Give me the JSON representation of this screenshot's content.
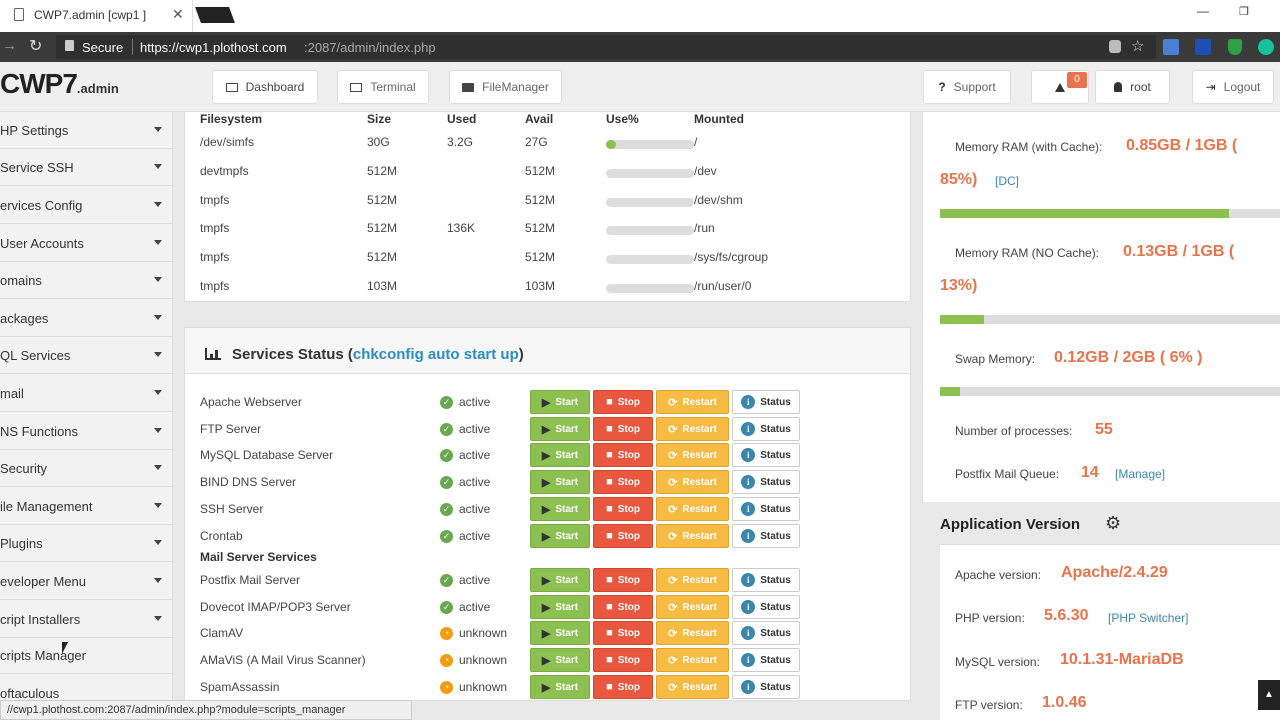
{
  "browser": {
    "tab_title": "CWP7.admin [cwp1 ]",
    "secure_label": "Secure",
    "url_host": "https://cwp1.plothost.com",
    "url_path": ":2087/admin/index.php"
  },
  "header": {
    "logo_main": "CWP7",
    "logo_sub": ".admin",
    "nav": [
      "Dashboard",
      "Terminal",
      "FileManager"
    ],
    "support": "Support",
    "notifications_count": "0",
    "user": "root",
    "logout": "Logout"
  },
  "sidebar": {
    "items": [
      "HP Settings",
      "Service SSH",
      "ervices Config",
      "User Accounts",
      "omains",
      "ackages",
      "QL Services",
      "mail",
      "NS Functions",
      "Security",
      "ile Management",
      "Plugins",
      "eveloper Menu",
      "cript Installers",
      "cripts Manager",
      "oftaculous"
    ]
  },
  "filesystem": {
    "headers": [
      "Filesystem",
      "Size",
      "Used",
      "Avail",
      "Use%",
      "Mounted"
    ],
    "rows": [
      {
        "fs": "/dev/simfs",
        "size": "30G",
        "used": "3.2G",
        "avail": "27G",
        "use_frac": 0.11,
        "mount": "/"
      },
      {
        "fs": "devtmpfs",
        "size": "512M",
        "used": "",
        "avail": "512M",
        "use_frac": 0,
        "mount": "/dev"
      },
      {
        "fs": "tmpfs",
        "size": "512M",
        "used": "",
        "avail": "512M",
        "use_frac": 0,
        "mount": "/dev/shm"
      },
      {
        "fs": "tmpfs",
        "size": "512M",
        "used": "136K",
        "avail": "512M",
        "use_frac": 0,
        "mount": "/run"
      },
      {
        "fs": "tmpfs",
        "size": "512M",
        "used": "",
        "avail": "512M",
        "use_frac": 0,
        "mount": "/sys/fs/cgroup"
      },
      {
        "fs": "tmpfs",
        "size": "103M",
        "used": "",
        "avail": "103M",
        "use_frac": 0,
        "mount": "/run/user/0"
      }
    ]
  },
  "services": {
    "title": "Services Status",
    "title_link": "chkconfig auto start up",
    "buttons": {
      "start": "Start",
      "stop": "Stop",
      "restart": "Restart",
      "status": "Status"
    },
    "mail_section": "Mail Server Services",
    "list": [
      {
        "name": "Apache Webserver",
        "state": "active"
      },
      {
        "name": "FTP Server",
        "state": "active"
      },
      {
        "name": "MySQL Database Server",
        "state": "active"
      },
      {
        "name": "BIND DNS Server",
        "state": "active"
      },
      {
        "name": "SSH Server",
        "state": "active"
      },
      {
        "name": "Crontab",
        "state": "active"
      }
    ],
    "mail_list": [
      {
        "name": "Postfix Mail Server",
        "state": "active"
      },
      {
        "name": "Dovecot IMAP/POP3 Server",
        "state": "active"
      },
      {
        "name": "ClamAV",
        "state": "unknown"
      },
      {
        "name": "AMaViS (A Mail Virus Scanner)",
        "state": "unknown"
      },
      {
        "name": "SpamAssassin",
        "state": "unknown"
      }
    ]
  },
  "stats": {
    "mem_cache_label": "Memory RAM (with Cache):",
    "mem_cache_value": "0.85GB / 1GB (",
    "mem_cache_pct": "85%)",
    "mem_cache_link": "[DC]",
    "mem_cache_frac": 0.85,
    "mem_nocache_label": "Memory RAM (NO Cache):",
    "mem_nocache_value": "0.13GB / 1GB (",
    "mem_nocache_pct": "13%)",
    "mem_nocache_frac": 0.13,
    "swap_label": "Swap Memory:",
    "swap_value": "0.12GB / 2GB ( 6% )",
    "swap_frac": 0.06,
    "proc_label": "Number of processes:",
    "proc_value": "55",
    "queue_label": "Postfix Mail Queue:",
    "queue_value": "14",
    "queue_link": "[Manage]"
  },
  "appversion": {
    "title": "Application Version",
    "apache_label": "Apache version:",
    "apache_value": "Apache/2.4.29",
    "php_label": "PHP version:",
    "php_value": "5.6.30",
    "php_link": "[PHP Switcher]",
    "mysql_label": "MySQL version:",
    "mysql_value": "10.1.31-MariaDB",
    "ftp_label": "FTP version:",
    "ftp_value": "1.0.46"
  },
  "statusbar": "//cwp1.plothost.com:2087/admin/index.php?module=scripts_manager"
}
